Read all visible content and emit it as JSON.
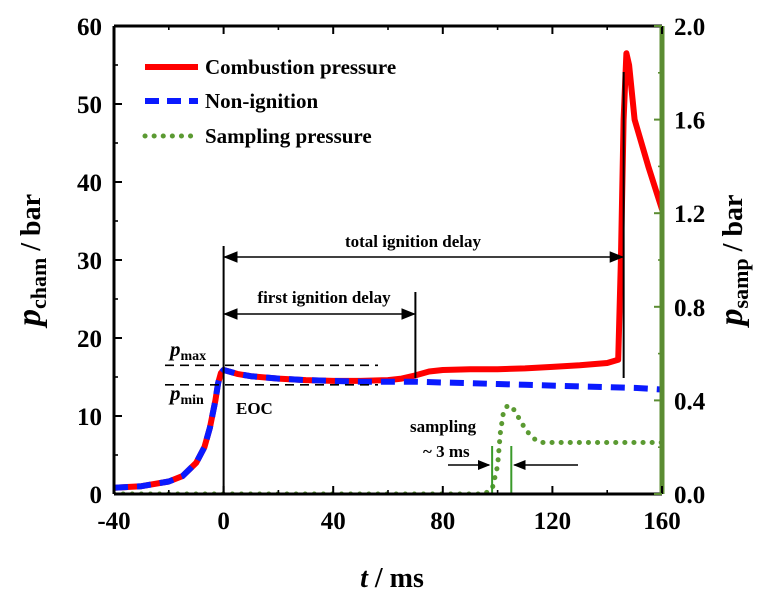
{
  "chart_data": {
    "type": "line",
    "xlabel": {
      "var": "t",
      "unit": " / ms"
    },
    "ylabel_left": {
      "var": "p",
      "sub": "cham",
      "unit": " / bar"
    },
    "ylabel_right": {
      "var": "p",
      "sub": "samp",
      "unit": " / bar"
    },
    "xlim": [
      -40,
      160
    ],
    "ylim_left": [
      0,
      60
    ],
    "ylim_right": [
      0,
      2.0
    ],
    "xticks": [
      "-40",
      "0",
      "40",
      "80",
      "120",
      "160"
    ],
    "yticks_left": [
      "0",
      "10",
      "20",
      "30",
      "40",
      "50",
      "60"
    ],
    "yticks_right": [
      "0.0",
      "0.4",
      "0.8",
      "1.2",
      "1.6",
      "2.0"
    ],
    "right_axis_color": "#5b8c32",
    "series": [
      {
        "name": "Combustion pressure",
        "axis": "left",
        "color": "#ff0000",
        "style": "solid",
        "x": [
          -40,
          -30,
          -20,
          -15,
          -10,
          -7,
          -5,
          -3,
          -2,
          -1,
          0,
          2,
          5,
          10,
          20,
          30,
          40,
          50,
          60,
          65,
          70,
          75,
          80,
          90,
          100,
          110,
          120,
          130,
          140,
          144,
          145,
          146,
          147,
          148,
          150,
          155,
          160
        ],
        "y": [
          0.8,
          1.0,
          1.6,
          2.3,
          4.0,
          6.0,
          8.5,
          12.0,
          14.2,
          15.5,
          15.9,
          15.7,
          15.4,
          15.1,
          14.8,
          14.6,
          14.5,
          14.5,
          14.6,
          14.8,
          15.2,
          15.7,
          15.9,
          16.0,
          16.0,
          16.1,
          16.3,
          16.5,
          16.8,
          17.2,
          30.0,
          48.0,
          56.5,
          55.0,
          48.0,
          42.0,
          36.5
        ]
      },
      {
        "name": "Non-ignition",
        "axis": "left",
        "color": "#0a1aff",
        "style": "dashed",
        "x": [
          -40,
          -30,
          -20,
          -15,
          -10,
          -7,
          -5,
          -3,
          -2,
          -1,
          0,
          2,
          5,
          10,
          20,
          30,
          40,
          50,
          60,
          70,
          80,
          90,
          100,
          110,
          120,
          130,
          140,
          150,
          160
        ],
        "y": [
          0.8,
          1.0,
          1.6,
          2.3,
          4.0,
          6.0,
          8.5,
          12.0,
          14.2,
          15.5,
          15.9,
          15.7,
          15.4,
          15.1,
          14.8,
          14.6,
          14.5,
          14.4,
          14.4,
          14.4,
          14.3,
          14.2,
          14.1,
          14.0,
          13.9,
          13.8,
          13.7,
          13.6,
          13.4
        ]
      },
      {
        "name": "Sampling pressure",
        "axis": "right",
        "color": "#5b9a32",
        "style": "dotted",
        "x": [
          -40,
          0,
          40,
          80,
          95,
          98,
          100,
          101,
          102,
          103,
          104,
          106,
          108,
          110,
          112,
          114,
          116,
          118,
          120,
          130,
          140,
          150,
          160
        ],
        "y": [
          0.0,
          0.0,
          0.0,
          0.0,
          0.0,
          0.02,
          0.12,
          0.26,
          0.34,
          0.37,
          0.38,
          0.36,
          0.32,
          0.28,
          0.25,
          0.23,
          0.22,
          0.22,
          0.22,
          0.22,
          0.22,
          0.22,
          0.22
        ]
      }
    ],
    "legend": {
      "placement": "top-left",
      "entries": [
        "Combustion pressure",
        "Non-ignition",
        "Sampling pressure"
      ]
    },
    "annotations": {
      "total_ignition_delay": "total ignition delay",
      "first_ignition_delay": "first ignition delay",
      "pmax": {
        "var": "p",
        "sub": "max"
      },
      "pmin": {
        "var": "p",
        "sub": "min"
      },
      "eoc": "EOC",
      "sampling": "sampling",
      "sampling_duration": "~ 3 ms"
    },
    "reference_lines": {
      "eoc_x": 0,
      "first_ignition_x": 70,
      "total_ignition_x": 146,
      "pmax_y": 16.5,
      "pmin_y": 14.0,
      "sampling_start_x": 98,
      "sampling_end_x": 105
    },
    "grid": false
  }
}
